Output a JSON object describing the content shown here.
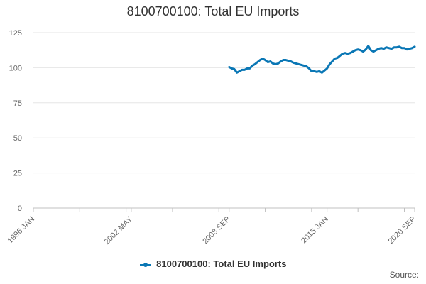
{
  "colors": {
    "series": "#0a77b5",
    "grid": "#e6e6e6",
    "axis": "#c0c0c0"
  },
  "credits": "Source:",
  "chart_data": {
    "type": "line",
    "title": "8100700100: Total EU Imports",
    "xlabel": "",
    "ylabel": "",
    "ylim": [
      0,
      125
    ],
    "yticks": [
      0,
      25,
      50,
      75,
      100,
      125
    ],
    "xlim": [
      "1996-01",
      "2020-09"
    ],
    "xticks": [
      {
        "date": "1996-01",
        "label": "1996 JAN"
      },
      {
        "date": "2002-05",
        "label": "2002 MAY"
      },
      {
        "date": "2008-09",
        "label": "2008 SEP"
      },
      {
        "date": "2015-01",
        "label": "2015 JAN"
      },
      {
        "date": "2020-09",
        "label": "2020 SEP"
      }
    ],
    "grid": true,
    "legend": "bottom",
    "series": [
      {
        "name": "8100700100: Total EU Imports",
        "points": [
          [
            "2008-09",
            100.5
          ],
          [
            "2008-11",
            99.5
          ],
          [
            "2009-01",
            99.0
          ],
          [
            "2009-03",
            96.5
          ],
          [
            "2009-05",
            97.5
          ],
          [
            "2009-07",
            98.5
          ],
          [
            "2009-09",
            98.5
          ],
          [
            "2009-11",
            99.5
          ],
          [
            "2010-01",
            99.5
          ],
          [
            "2010-03",
            101.5
          ],
          [
            "2010-05",
            102.5
          ],
          [
            "2010-07",
            104.0
          ],
          [
            "2010-09",
            105.5
          ],
          [
            "2010-11",
            106.5
          ],
          [
            "2011-01",
            105.5
          ],
          [
            "2011-03",
            104.0
          ],
          [
            "2011-05",
            104.5
          ],
          [
            "2011-07",
            103.0
          ],
          [
            "2011-09",
            102.5
          ],
          [
            "2011-11",
            103.0
          ],
          [
            "2012-01",
            104.5
          ],
          [
            "2012-03",
            105.5
          ],
          [
            "2012-05",
            105.5
          ],
          [
            "2012-07",
            105.0
          ],
          [
            "2012-09",
            104.5
          ],
          [
            "2012-11",
            103.5
          ],
          [
            "2013-01",
            103.0
          ],
          [
            "2013-03",
            102.5
          ],
          [
            "2013-05",
            102.0
          ],
          [
            "2013-07",
            101.5
          ],
          [
            "2013-09",
            101.0
          ],
          [
            "2013-11",
            99.5
          ],
          [
            "2014-01",
            97.5
          ],
          [
            "2014-03",
            97.5
          ],
          [
            "2014-05",
            97.0
          ],
          [
            "2014-07",
            97.5
          ],
          [
            "2014-09",
            96.5
          ],
          [
            "2014-11",
            98.0
          ],
          [
            "2015-01",
            99.5
          ],
          [
            "2015-03",
            102.5
          ],
          [
            "2015-05",
            104.5
          ],
          [
            "2015-07",
            106.5
          ],
          [
            "2015-09",
            107.0
          ],
          [
            "2015-11",
            108.5
          ],
          [
            "2016-01",
            110.0
          ],
          [
            "2016-03",
            110.5
          ],
          [
            "2016-05",
            110.0
          ],
          [
            "2016-07",
            110.5
          ],
          [
            "2016-09",
            111.5
          ],
          [
            "2016-11",
            112.5
          ],
          [
            "2017-01",
            113.0
          ],
          [
            "2017-03",
            112.5
          ],
          [
            "2017-05",
            111.5
          ],
          [
            "2017-07",
            113.0
          ],
          [
            "2017-09",
            115.5
          ],
          [
            "2017-11",
            112.5
          ],
          [
            "2018-01",
            111.5
          ],
          [
            "2018-03",
            112.5
          ],
          [
            "2018-05",
            113.5
          ],
          [
            "2018-07",
            114.0
          ],
          [
            "2018-09",
            113.5
          ],
          [
            "2018-11",
            114.5
          ],
          [
            "2019-01",
            114.0
          ],
          [
            "2019-03",
            113.5
          ],
          [
            "2019-05",
            114.5
          ],
          [
            "2019-07",
            114.5
          ],
          [
            "2019-09",
            115.0
          ],
          [
            "2019-11",
            114.0
          ],
          [
            "2020-01",
            114.0
          ],
          [
            "2020-03",
            113.0
          ],
          [
            "2020-05",
            113.5
          ],
          [
            "2020-07",
            114.0
          ],
          [
            "2020-09",
            115.0
          ]
        ]
      }
    ]
  }
}
